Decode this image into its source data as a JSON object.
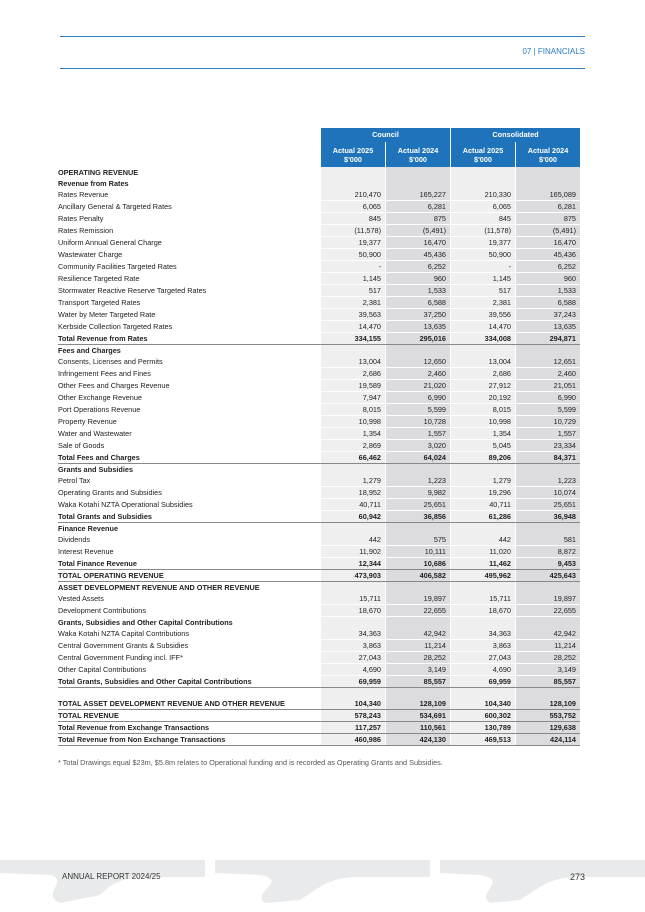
{
  "header": {
    "section": "07 | FINANCIALS"
  },
  "table": {
    "groups": [
      "Council",
      "Consolidated"
    ],
    "columns": [
      "Actual 2025",
      "$'000",
      "Actual 2024",
      "$'000",
      "Actual 2025",
      "$'000",
      "Actual 2024",
      "$'000"
    ],
    "rows": [
      {
        "t": "head",
        "label": "OPERATING REVENUE",
        "v": [
          "",
          "",
          "",
          ""
        ]
      },
      {
        "t": "sub",
        "label": "Revenue from Rates",
        "v": [
          "",
          "",
          "",
          ""
        ]
      },
      {
        "t": "item",
        "label": "Rates Revenue",
        "v": [
          "210,470",
          "165,227",
          "210,330",
          "165,089"
        ]
      },
      {
        "t": "item",
        "label": "Ancillary General & Targeted Rates",
        "v": [
          "6,065",
          "6,281",
          "6,065",
          "6,281"
        ]
      },
      {
        "t": "item",
        "label": "Rates Penalty",
        "v": [
          "845",
          "875",
          "845",
          "875"
        ]
      },
      {
        "t": "item",
        "label": "Rates Remission",
        "v": [
          "(11,578)",
          "(5,491)",
          "(11,578)",
          "(5,491)"
        ]
      },
      {
        "t": "item",
        "label": "Uniform Annual General Charge",
        "v": [
          "19,377",
          "16,470",
          "19,377",
          "16,470"
        ]
      },
      {
        "t": "item",
        "label": "Wastewater Charge",
        "v": [
          "50,900",
          "45,436",
          "50,900",
          "45,436"
        ]
      },
      {
        "t": "item",
        "label": "Community Facilities Targeted Rates",
        "v": [
          "-",
          "6,252",
          "-",
          "6,252"
        ]
      },
      {
        "t": "item",
        "label": "Resilience Targeted Rate",
        "v": [
          "1,145",
          "960",
          "1,145",
          "960"
        ]
      },
      {
        "t": "item",
        "label": "Stormwater Reactive Reserve Targeted Rates",
        "v": [
          "517",
          "1,533",
          "517",
          "1,533"
        ]
      },
      {
        "t": "item",
        "label": "Transport Targeted Rates",
        "v": [
          "2,381",
          "6,588",
          "2,381",
          "6,588"
        ]
      },
      {
        "t": "item",
        "label": "Water by Meter Targeted Rate",
        "v": [
          "39,563",
          "37,250",
          "39,556",
          "37,243"
        ]
      },
      {
        "t": "item",
        "label": "Kerbside Collection Targeted Rates",
        "v": [
          "14,470",
          "13,635",
          "14,470",
          "13,635"
        ]
      },
      {
        "t": "total",
        "label": "Total  Revenue from Rates",
        "v": [
          "334,155",
          "295,016",
          "334,008",
          "294,871"
        ]
      },
      {
        "t": "sub",
        "label": "Fees and Charges",
        "v": [
          "",
          "",
          "",
          ""
        ]
      },
      {
        "t": "item",
        "label": "Consents, Licenses and Permits",
        "v": [
          "13,004",
          "12,650",
          "13,004",
          "12,651"
        ]
      },
      {
        "t": "item",
        "label": "Infringement Fees and Fines",
        "v": [
          "2,686",
          "2,460",
          "2,686",
          "2,460"
        ]
      },
      {
        "t": "item",
        "label": "Other Fees and Charges Revenue",
        "v": [
          "19,589",
          "21,020",
          "27,912",
          "21,051"
        ]
      },
      {
        "t": "item",
        "label": "Other Exchange Revenue",
        "v": [
          "7,947",
          "6,990",
          "20,192",
          "6,990"
        ]
      },
      {
        "t": "item",
        "label": "Port Operations Revenue",
        "v": [
          "8,015",
          "5,599",
          "8,015",
          "5,599"
        ]
      },
      {
        "t": "item",
        "label": "Property Revenue",
        "v": [
          "10,998",
          "10,728",
          "10,998",
          "10,729"
        ]
      },
      {
        "t": "item",
        "label": "Water and Wastewater",
        "v": [
          "1,354",
          "1,557",
          "1,354",
          "1,557"
        ]
      },
      {
        "t": "item",
        "label": "Sale of Goods",
        "v": [
          "2,869",
          "3,020",
          "5,045",
          "23,334"
        ]
      },
      {
        "t": "total",
        "label": "Total Fees and Charges",
        "v": [
          "66,462",
          "64,024",
          "89,206",
          "84,371"
        ]
      },
      {
        "t": "sub",
        "label": "Grants and Subsidies",
        "v": [
          "",
          "",
          "",
          ""
        ]
      },
      {
        "t": "item",
        "label": "Petrol Tax",
        "v": [
          "1,279",
          "1,223",
          "1,279",
          "1,223"
        ]
      },
      {
        "t": "item",
        "label": "Operating Grants and Subsidies",
        "v": [
          "18,952",
          "9,982",
          "19,296",
          "10,074"
        ]
      },
      {
        "t": "item",
        "label": "Waka Kotahi NZTA Operational Subsidies",
        "v": [
          "40,711",
          "25,651",
          "40,711",
          "25,651"
        ]
      },
      {
        "t": "total",
        "label": "Total Grants and Subsidies",
        "v": [
          "60,942",
          "36,856",
          "61,286",
          "36,948"
        ]
      },
      {
        "t": "sub",
        "label": "Finance Revenue",
        "v": [
          "",
          "",
          "",
          ""
        ]
      },
      {
        "t": "item",
        "label": "Dividends",
        "v": [
          "442",
          "575",
          "442",
          "581"
        ]
      },
      {
        "t": "item",
        "label": "Interest Revenue",
        "v": [
          "11,902",
          "10,111",
          "11,020",
          "8,872"
        ]
      },
      {
        "t": "total",
        "label": "Total Finance Revenue",
        "v": [
          "12,344",
          "10,686",
          "11,462",
          "9,453"
        ]
      },
      {
        "t": "total",
        "label": "TOTAL OPERATING REVENUE",
        "v": [
          "473,903",
          "406,582",
          "495,962",
          "425,643"
        ]
      },
      {
        "t": "head",
        "label": "ASSET DEVELOPMENT REVENUE AND OTHER REVENUE",
        "v": [
          "",
          "",
          "",
          ""
        ]
      },
      {
        "t": "item",
        "label": "Vested Assets",
        "v": [
          "15,711",
          "19,897",
          "15,711",
          "19,897"
        ]
      },
      {
        "t": "item",
        "label": "Development Contributions",
        "v": [
          "18,670",
          "22,655",
          "18,670",
          "22,655"
        ]
      },
      {
        "t": "sub",
        "label": "Grants, Subsidies and Other Capital Contributions",
        "v": [
          "",
          "",
          "",
          ""
        ]
      },
      {
        "t": "item",
        "label": "Waka Kotahi NZTA Capital Contributions",
        "v": [
          "34,363",
          "42,942",
          "34,363",
          "42,942"
        ]
      },
      {
        "t": "item",
        "label": "Central Government Grants & Subsidies",
        "v": [
          "3,863",
          "11,214",
          "3,863",
          "11,214"
        ]
      },
      {
        "t": "item",
        "label": "Central Government Funding incl. IFF*",
        "v": [
          "27,043",
          "28,252",
          "27,043",
          "28,252"
        ]
      },
      {
        "t": "item",
        "label": "Other Capital Contributions",
        "v": [
          "4,690",
          "3,149",
          "4,690",
          "3,149"
        ]
      },
      {
        "t": "total",
        "label": "Total Grants, Subsidies and Other Capital Contributions",
        "v": [
          "69,959",
          "85,557",
          "69,959",
          "85,557"
        ]
      },
      {
        "t": "total tall",
        "label": "TOTAL ASSET DEVELOPMENT REVENUE AND OTHER REVENUE",
        "v": [
          "104,340",
          "128,109",
          "104,340",
          "128,109"
        ]
      },
      {
        "t": "total",
        "label": "TOTAL REVENUE",
        "v": [
          "578,243",
          "534,691",
          "600,302",
          "553,752"
        ]
      },
      {
        "t": "total",
        "label": "Total Revenue from Exchange Transactions",
        "v": [
          "117,257",
          "110,561",
          "130,789",
          "129,638"
        ]
      },
      {
        "t": "total",
        "label": "Total Revenue from Non Exchange Transactions",
        "v": [
          "460,986",
          "424,130",
          "469,513",
          "424,114"
        ]
      }
    ]
  },
  "footnote": "* Total Drawings equal $23m, $5.8m relates to Operational funding and is recorded as Operating Grants and Subsidies.",
  "footer": {
    "left": "ANNUAL REPORT 2024/25",
    "page": "273"
  },
  "colors": {
    "accent": "#1f73bb"
  }
}
